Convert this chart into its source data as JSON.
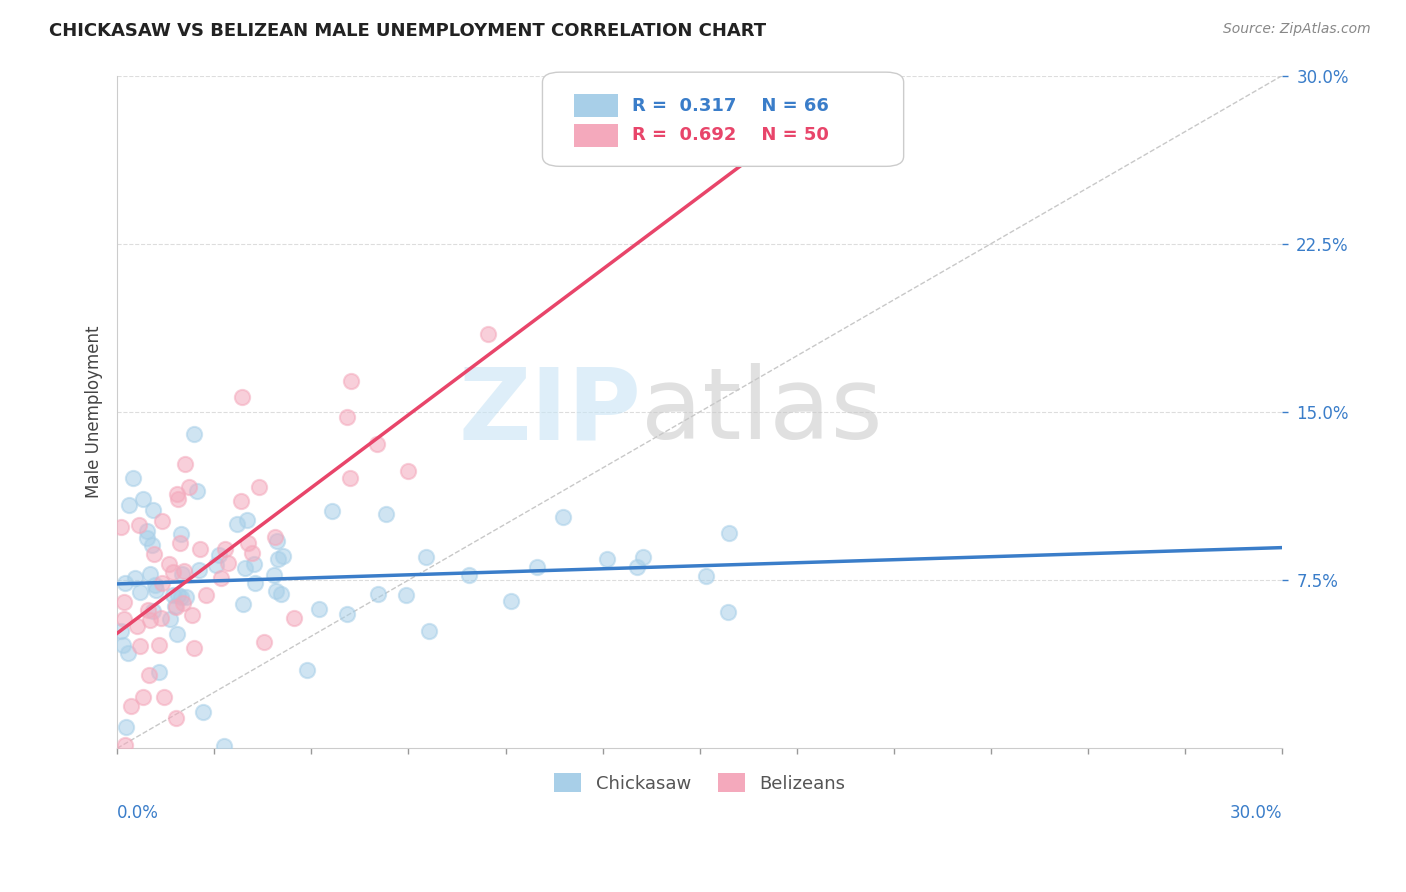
{
  "title": "CHICKASAW VS BELIZEAN MALE UNEMPLOYMENT CORRELATION CHART",
  "source": "Source: ZipAtlas.com",
  "ylabel": "Male Unemployment",
  "yticklabels": [
    "7.5%",
    "15.0%",
    "22.5%",
    "30.0%"
  ],
  "yticks": [
    0.075,
    0.15,
    0.225,
    0.3
  ],
  "xlim": [
    0.0,
    0.3
  ],
  "ylim": [
    0.0,
    0.3
  ],
  "chickasaw_color": "#a8cfe8",
  "belizean_color": "#f4a9bc",
  "chickasaw_line_color": "#3a7dc9",
  "belizean_line_color": "#e8456a",
  "refline_color": "#c8c8c8",
  "legend_label1": "Chickasaw",
  "legend_label2": "Belizeans",
  "r1": 0.317,
  "n1": 66,
  "r2": 0.692,
  "n2": 50,
  "marker_size": 120,
  "marker_alpha": 0.55
}
